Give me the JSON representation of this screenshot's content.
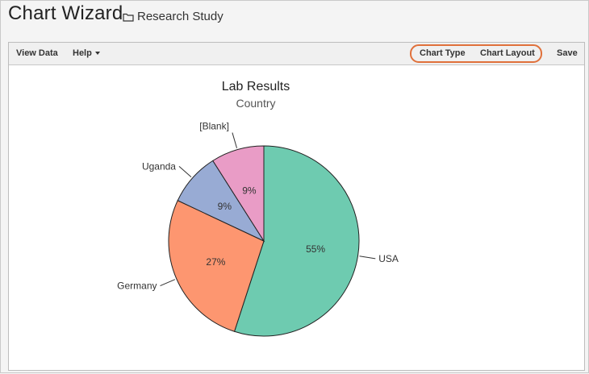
{
  "header": {
    "title": "Chart Wizard",
    "folder_icon": "folder-icon",
    "folder_label": "Research Study"
  },
  "toolbar": {
    "view_data": "View Data",
    "help": "Help",
    "chart_type": "Chart Type",
    "chart_layout": "Chart Layout",
    "save": "Save",
    "highlight_color": "#e0703a"
  },
  "chart_data": {
    "type": "pie",
    "title": "Lab Results",
    "subtitle": "Country",
    "slices": [
      {
        "label": "USA",
        "value": 55,
        "percent_label": "55%",
        "color": "#6ecbb0"
      },
      {
        "label": "Germany",
        "value": 27,
        "percent_label": "27%",
        "color": "#fd9670"
      },
      {
        "label": "Uganda",
        "value": 9,
        "percent_label": "9%",
        "color": "#98abd4"
      },
      {
        "label": "[Blank]",
        "value": 9,
        "percent_label": "9%",
        "color": "#e99cc6"
      }
    ]
  }
}
